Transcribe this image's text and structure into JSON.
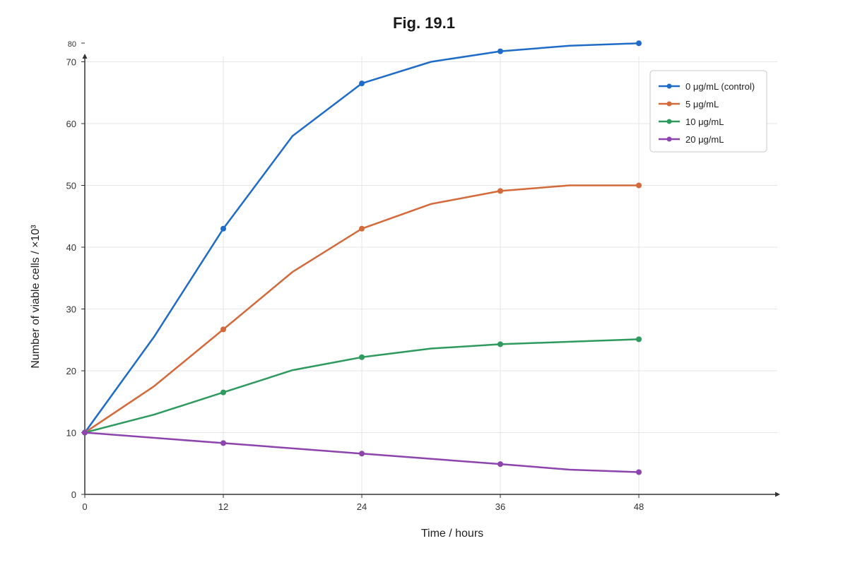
{
  "chart_data": {
    "type": "line",
    "title": "Fig. 19.1",
    "xlabel": "Time / hours",
    "ylabel": "Number of viable cells / ×10³",
    "xlim": [
      0,
      60
    ],
    "ylim": [
      0,
      70
    ],
    "x_ticks": [
      "0",
      "12",
      "24",
      "36",
      "48"
    ],
    "y_ticks": [
      "0",
      "10",
      "20",
      "30",
      "40",
      "50",
      "60",
      "70"
    ],
    "y_extra_tick": "80",
    "grid": true,
    "legend_position": "top-right",
    "series": [
      {
        "name": "0 μg/mL (control)",
        "color": "#1f6cc8",
        "x": [
          0,
          6,
          12,
          18,
          24,
          30,
          36,
          42,
          48
        ],
        "y": [
          10,
          25.5,
          43,
          58,
          66.5,
          70,
          71.7,
          72.6,
          73
        ],
        "marker_x": [
          0,
          12,
          24,
          36,
          48
        ],
        "marker_y": [
          10,
          43,
          66.5,
          71.7,
          73
        ]
      },
      {
        "name": "5 μg/mL",
        "color": "#d4693a",
        "x": [
          0,
          6,
          12,
          18,
          24,
          30,
          36,
          42,
          48
        ],
        "y": [
          10,
          17.5,
          26.7,
          36,
          43,
          47,
          49.1,
          50,
          50
        ],
        "marker_x": [
          0,
          12,
          24,
          36,
          48
        ],
        "marker_y": [
          10,
          26.7,
          43,
          49.1,
          50
        ]
      },
      {
        "name": "10 μg/mL",
        "color": "#2e9a5e",
        "x": [
          0,
          6,
          12,
          18,
          24,
          30,
          36,
          42,
          48
        ],
        "y": [
          10,
          12.9,
          16.5,
          20.1,
          22.2,
          23.6,
          24.3,
          24.7,
          25.1
        ],
        "marker_x": [
          0,
          12,
          24,
          36,
          48
        ],
        "marker_y": [
          10,
          16.5,
          22.2,
          24.3,
          25.1
        ]
      },
      {
        "name": "20 μg/mL",
        "color": "#8e44ad",
        "x": [
          0,
          12,
          24,
          36,
          42,
          48
        ],
        "y": [
          10,
          8.3,
          6.6,
          4.9,
          4.0,
          3.6
        ],
        "marker_x": [
          0,
          12,
          24,
          36,
          48
        ],
        "marker_y": [
          10,
          8.3,
          6.6,
          4.9,
          3.6
        ]
      }
    ]
  }
}
